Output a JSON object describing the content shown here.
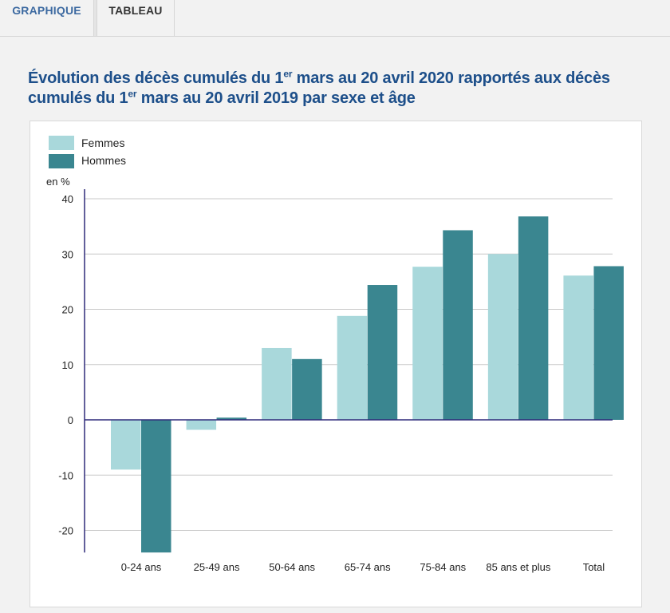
{
  "tabs": [
    {
      "label": "GRAPHIQUE",
      "active": true
    },
    {
      "label": "TABLEAU",
      "active": false
    }
  ],
  "title": {
    "part1": "Évolution des décès cumulés du 1",
    "sup1": "er",
    "part2": " mars au 20 avril 2020 rapportés aux décès cumulés du 1",
    "sup2": "er",
    "part3": " mars au 20 avril 2019 par sexe et âge"
  },
  "colors": {
    "femmes": "#a9d8db",
    "hommes": "#3a8690",
    "axis": "#2f2a7a",
    "grid": "#c8c8c8"
  },
  "chart_data": {
    "type": "bar",
    "title": "Évolution des décès cumulés du 1er mars au 20 avril 2020 rapportés aux décès cumulés du 1er mars au 20 avril 2019 par sexe et âge",
    "ylabel": "en %",
    "xlabel": "",
    "ylim": [
      -24,
      40
    ],
    "yticks": [
      40,
      30,
      20,
      10,
      0,
      -10,
      -20
    ],
    "categories": [
      "0-24 ans",
      "25-49 ans",
      "50-64 ans",
      "65-74 ans",
      "75-84 ans",
      "85 ans et plus",
      "Total"
    ],
    "series": [
      {
        "name": "Femmes",
        "values": [
          -9.0,
          -1.8,
          13.0,
          18.8,
          27.7,
          30.0,
          26.1
        ]
      },
      {
        "name": "Hommes",
        "values": [
          -24.0,
          0.4,
          11.0,
          24.4,
          34.3,
          36.8,
          27.8
        ]
      }
    ],
    "legend_position": "top-left",
    "grid": true
  }
}
